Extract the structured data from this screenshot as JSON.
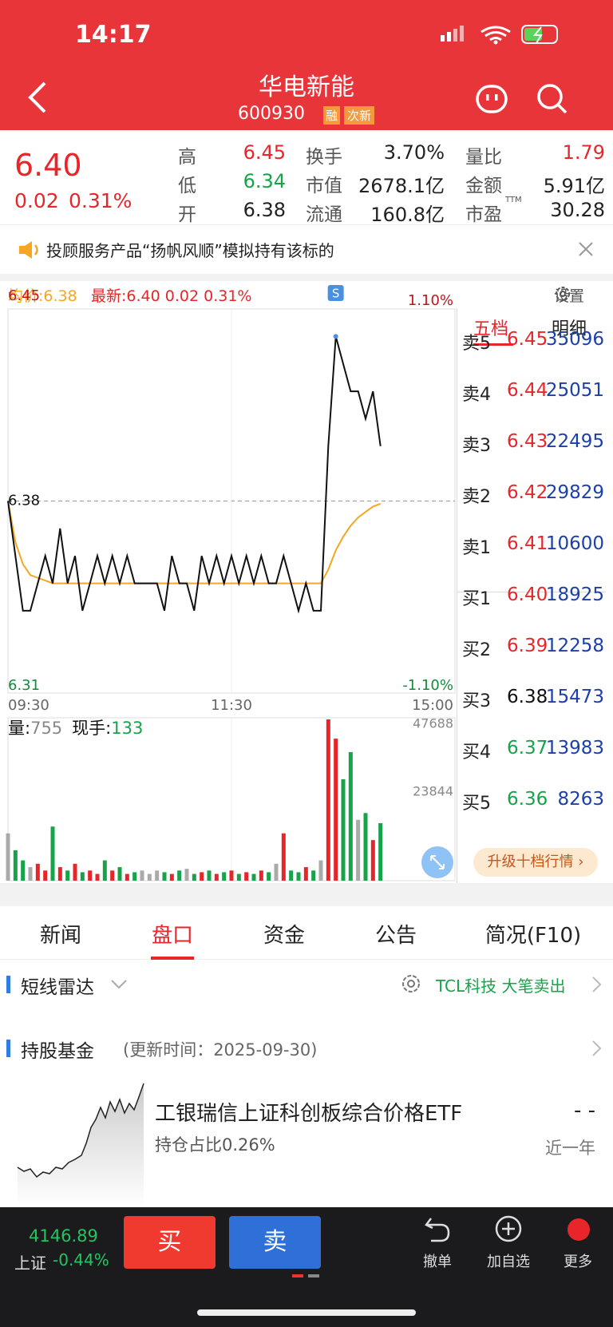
{
  "status_bar": {
    "time": "14:17"
  },
  "header": {
    "title": "华电新能",
    "code": "600930",
    "tags": [
      "融",
      "次新"
    ]
  },
  "quote": {
    "price": "6.40",
    "change": "0.02",
    "change_pct": "0.31%",
    "stats": [
      {
        "label": "高",
        "value": "6.45"
      },
      {
        "label": "换手",
        "value": "3.70%"
      },
      {
        "label": "量比",
        "value": "1.79"
      },
      {
        "label": "低",
        "value": "6.34"
      },
      {
        "label": "市值",
        "value": "2678.1亿"
      },
      {
        "label": "金额",
        "value": "5.91亿"
      },
      {
        "label": "开",
        "value": "6.38"
      },
      {
        "label": "流通",
        "value": "160.8亿"
      },
      {
        "label": "市盈",
        "sup": "TTM",
        "value": "30.28"
      }
    ]
  },
  "notice": "投顾服务产品“扬帆风顺”模拟持有该标的",
  "chart_header": {
    "avg_label": "均价:",
    "avg": "6.38",
    "last_label": "最新:",
    "last": "6.40",
    "change": "0.02",
    "change_pct": "0.31%",
    "settings": "设置"
  },
  "intraday": {
    "yticks": [
      6.45,
      6.38,
      6.31
    ],
    "pct_top": "1.10%",
    "pct_bottom": "-1.10%",
    "times": [
      "09:30",
      "11:30",
      "15:00"
    ],
    "signal": "S",
    "price": [
      6.38,
      6.36,
      6.34,
      6.34,
      6.35,
      6.36,
      6.35,
      6.37,
      6.35,
      6.36,
      6.34,
      6.35,
      6.36,
      6.35,
      6.36,
      6.35,
      6.36,
      6.35,
      6.35,
      6.35,
      6.35,
      6.34,
      6.36,
      6.35,
      6.35,
      6.34,
      6.36,
      6.35,
      6.36,
      6.35,
      6.36,
      6.35,
      6.36,
      6.35,
      6.36,
      6.35,
      6.35,
      6.36,
      6.35,
      6.34,
      6.35,
      6.34,
      6.34,
      6.4,
      6.44,
      6.43,
      6.42,
      6.42,
      6.41,
      6.42,
      6.4
    ],
    "avg": [
      6.38,
      6.365,
      6.357,
      6.353,
      6.352,
      6.351,
      6.35,
      6.35,
      6.35,
      6.35,
      6.35,
      6.35,
      6.35,
      6.35,
      6.35,
      6.35,
      6.35,
      6.35,
      6.35,
      6.35,
      6.35,
      6.35,
      6.35,
      6.35,
      6.35,
      6.35,
      6.35,
      6.35,
      6.35,
      6.35,
      6.35,
      6.35,
      6.35,
      6.35,
      6.35,
      6.35,
      6.35,
      6.35,
      6.35,
      6.35,
      6.35,
      6.35,
      6.35,
      6.355,
      6.362,
      6.367,
      6.371,
      6.374,
      6.376,
      6.378,
      6.379
    ],
    "volume": [
      14000,
      9000,
      6000,
      4000,
      5000,
      3000,
      16000,
      4000,
      3000,
      5000,
      2500,
      3000,
      2000,
      6000,
      3000,
      4000,
      2000,
      2500,
      3000,
      2000,
      3000,
      2500,
      2000,
      3000,
      3500,
      2000,
      2500,
      3000,
      2000,
      2500,
      3000,
      2000,
      2500,
      2000,
      3000,
      2500,
      5000,
      14000,
      3000,
      2500,
      4000,
      3000,
      6000,
      47688,
      42000,
      30000,
      38000,
      18000,
      20000,
      12000,
      17000
    ],
    "vol_ticks": [
      47688,
      23844
    ],
    "vol_label": "量:",
    "vol": "755",
    "hand_label": "现手:",
    "hand": "133"
  },
  "order_book": {
    "tabs": [
      "五档",
      "明细"
    ],
    "rows": [
      {
        "label": "卖5",
        "price": "6.45",
        "volume": 35096
      },
      {
        "label": "卖4",
        "price": "6.44",
        "volume": 25051
      },
      {
        "label": "卖3",
        "price": "6.43",
        "volume": 22495
      },
      {
        "label": "卖2",
        "price": "6.42",
        "volume": 29829
      },
      {
        "label": "卖1",
        "price": "6.41",
        "volume": 10600
      },
      {
        "label": "买1",
        "price": "6.40",
        "volume": 18925
      },
      {
        "label": "买2",
        "price": "6.39",
        "volume": 12258
      },
      {
        "label": "买3",
        "price": "6.38",
        "volume": 15473
      },
      {
        "label": "买4",
        "price": "6.37",
        "volume": 13983
      },
      {
        "label": "买5",
        "price": "6.36",
        "volume": 8263
      }
    ],
    "upgrade": "升级十档行情"
  },
  "tabs": [
    "新闻",
    "盘口",
    "资金",
    "公告",
    "简况(F10)"
  ],
  "radar": {
    "title": "短线雷达",
    "stock": "TCL科技",
    "event": "大笔卖出"
  },
  "funds": {
    "title": "持股基金",
    "updated": "(更新时间：2025-09-30)",
    "name": "工银瑞信上证科创板综合价格ETF",
    "holding": "持仓占比0.26%",
    "value": "- -",
    "period": "近一年"
  },
  "bottom": {
    "index_value": "4146.89",
    "index_name": "上证",
    "index_change": "-0.44%",
    "buy": "买",
    "sell": "卖",
    "actions": [
      "撤单",
      "加自选",
      "更多"
    ]
  }
}
